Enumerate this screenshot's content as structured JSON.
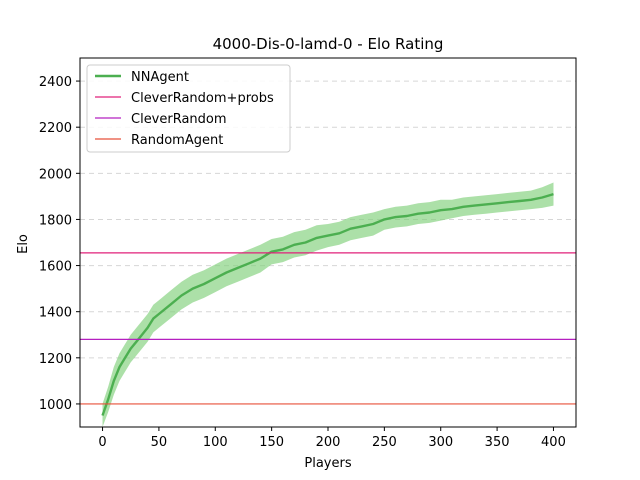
{
  "chart_data": {
    "type": "line",
    "title": "4000-Dis-0-lamd-0 - Elo Rating",
    "xlabel": "Players",
    "ylabel": "Elo",
    "xlim": [
      -20,
      420
    ],
    "ylim": [
      900,
      2500
    ],
    "x_ticks": [
      0,
      50,
      100,
      150,
      200,
      250,
      300,
      350,
      400
    ],
    "y_ticks": [
      1000,
      1200,
      1400,
      1600,
      1800,
      2000,
      2200,
      2400
    ],
    "grid": "horizontal-dashed",
    "legend_position": "top-left",
    "series": [
      {
        "name": "NNAgent",
        "type": "line-with-band",
        "color": "#4caf50",
        "band_color": "#7fcf7a",
        "x": [
          0,
          5,
          10,
          15,
          20,
          25,
          30,
          35,
          40,
          45,
          50,
          60,
          70,
          80,
          90,
          100,
          110,
          120,
          130,
          140,
          150,
          160,
          170,
          180,
          190,
          200,
          210,
          220,
          230,
          240,
          250,
          260,
          270,
          280,
          290,
          300,
          310,
          320,
          330,
          340,
          350,
          360,
          370,
          380,
          390,
          400
        ],
        "y": [
          950,
          1020,
          1100,
          1160,
          1200,
          1240,
          1270,
          1300,
          1330,
          1370,
          1390,
          1430,
          1470,
          1500,
          1520,
          1545,
          1570,
          1590,
          1610,
          1630,
          1660,
          1670,
          1690,
          1700,
          1720,
          1730,
          1740,
          1760,
          1770,
          1780,
          1800,
          1810,
          1815,
          1825,
          1830,
          1840,
          1845,
          1855,
          1860,
          1865,
          1870,
          1875,
          1880,
          1885,
          1895,
          1910
        ],
        "band_halfwidth": [
          50,
          55,
          60,
          60,
          60,
          60,
          60,
          60,
          60,
          60,
          60,
          60,
          60,
          60,
          60,
          60,
          60,
          60,
          60,
          60,
          55,
          55,
          55,
          55,
          55,
          50,
          50,
          50,
          50,
          50,
          45,
          45,
          45,
          45,
          45,
          45,
          40,
          40,
          40,
          40,
          40,
          40,
          40,
          40,
          45,
          50
        ]
      },
      {
        "name": "CleverRandom+probs",
        "type": "hline",
        "y": 1655,
        "color": "#e0207a"
      },
      {
        "name": "CleverRandom",
        "type": "hline",
        "y": 1280,
        "color": "#b520c0"
      },
      {
        "name": "RandomAgent",
        "type": "hline",
        "y": 1000,
        "color": "#e8503a"
      }
    ]
  }
}
